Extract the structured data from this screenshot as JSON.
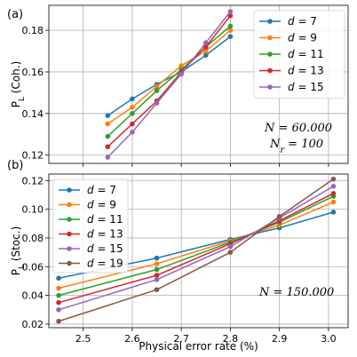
{
  "chart_data": [
    {
      "panel_tag": "(a)",
      "type": "line",
      "ylabel": "P_L (Coh.)",
      "xlabel": "",
      "xlim": [
        2.43,
        3.04
      ],
      "ylim": [
        0.116,
        0.192
      ],
      "xticks": [
        2.5,
        2.6,
        2.7,
        2.8,
        2.9,
        3.0
      ],
      "xtick_labels_shown": false,
      "yticks": [
        0.12,
        0.14,
        0.16,
        0.18
      ],
      "ytick_labels": [
        "0.12",
        "0.14",
        "0.16",
        "0.18"
      ],
      "grid": true,
      "legend_position": "top-right",
      "annotations": [
        "N = 60.000",
        "N_r = 100"
      ],
      "x": [
        2.55,
        2.6,
        2.65,
        2.7,
        2.75,
        2.8
      ],
      "series": [
        {
          "name": "d = 7",
          "color": "#1f77b4",
          "values": [
            0.139,
            0.147,
            0.154,
            0.16,
            0.168,
            0.177
          ]
        },
        {
          "name": "d = 9",
          "color": "#ff7f0e",
          "values": [
            0.135,
            0.143,
            0.153,
            0.163,
            0.17,
            0.18
          ]
        },
        {
          "name": "d = 11",
          "color": "#2ca02c",
          "values": [
            0.129,
            0.14,
            0.151,
            0.161,
            0.172,
            0.182
          ]
        },
        {
          "name": "d = 13",
          "color": "#d62728",
          "values": [
            0.124,
            0.135,
            0.146,
            0.16,
            0.172,
            0.187
          ]
        },
        {
          "name": "d = 15",
          "color": "#9467bd",
          "values": [
            0.119,
            0.131,
            0.145,
            0.159,
            0.174,
            0.189
          ]
        }
      ]
    },
    {
      "panel_tag": "(b)",
      "type": "line",
      "ylabel": "P_L (Stoc.)",
      "xlabel": "Physical error rate (%)",
      "xlim": [
        2.43,
        3.04
      ],
      "ylim": [
        0.0175,
        0.1245
      ],
      "xticks": [
        2.5,
        2.6,
        2.7,
        2.8,
        2.9,
        3.0
      ],
      "xtick_labels": [
        "2.5",
        "2.6",
        "2.7",
        "2.8",
        "2.9",
        "3.0"
      ],
      "yticks": [
        0.02,
        0.04,
        0.06,
        0.08,
        0.1,
        0.12
      ],
      "ytick_labels": [
        "0.02",
        "0.04",
        "0.06",
        "0.08",
        "0.10",
        "0.12"
      ],
      "grid": true,
      "legend_position": "top-left",
      "annotations": [
        "N = 150.000"
      ],
      "x": [
        2.45,
        2.65,
        2.8,
        2.9,
        3.01
      ],
      "series": [
        {
          "name": "d = 7",
          "color": "#1f77b4",
          "values": [
            0.052,
            0.066,
            0.079,
            0.087,
            0.098
          ]
        },
        {
          "name": "d = 9",
          "color": "#ff7f0e",
          "values": [
            0.045,
            0.062,
            0.078,
            0.089,
            0.105
          ]
        },
        {
          "name": "d = 11",
          "color": "#2ca02c",
          "values": [
            0.04,
            0.058,
            0.077,
            0.091,
            0.109
          ]
        },
        {
          "name": "d = 13",
          "color": "#d62728",
          "values": [
            0.035,
            0.054,
            0.076,
            0.092,
            0.111
          ]
        },
        {
          "name": "d = 15",
          "color": "#9467bd",
          "values": [
            0.03,
            0.051,
            0.074,
            0.094,
            0.116
          ]
        },
        {
          "name": "d = 19",
          "color": "#8c564b",
          "values": [
            0.022,
            0.044,
            0.07,
            0.095,
            0.121
          ]
        }
      ]
    }
  ]
}
